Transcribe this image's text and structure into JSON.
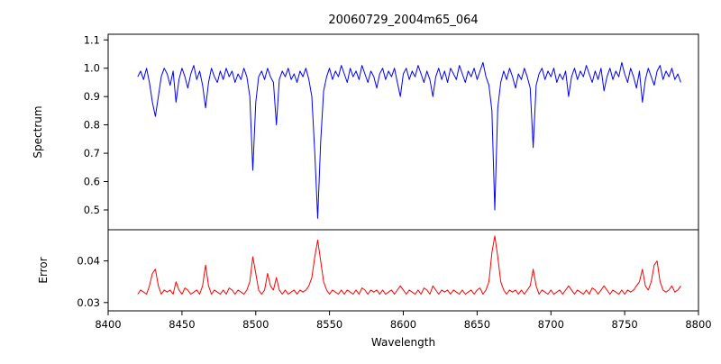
{
  "figure": {
    "background": "#ffffff",
    "axis_color": "#000000"
  },
  "chart_data": [
    {
      "type": "line",
      "name": "spectrum",
      "panel": "top",
      "title": "20060729_2004m65_064",
      "ylabel": "Spectrum",
      "color": "#0000ff",
      "grid": false,
      "legend": "none",
      "xlim": [
        8400,
        8800
      ],
      "ylim": [
        0.43,
        1.12
      ],
      "x_start": 8420,
      "x_step": 2,
      "y_ticks": [
        {
          "value": 0.5,
          "label": "0.5"
        },
        {
          "value": 0.6,
          "label": "0.6"
        },
        {
          "value": 0.7,
          "label": "0.7"
        },
        {
          "value": 0.8,
          "label": "0.8"
        },
        {
          "value": 0.9,
          "label": "0.9"
        },
        {
          "value": 1.0,
          "label": "1.0"
        },
        {
          "value": 1.1,
          "label": "1.1"
        }
      ],
      "y": [
        0.97,
        0.99,
        0.96,
        1.0,
        0.95,
        0.88,
        0.83,
        0.9,
        0.97,
        1.0,
        0.98,
        0.94,
        0.99,
        0.88,
        0.96,
        1.0,
        0.97,
        0.93,
        0.98,
        1.01,
        0.96,
        0.99,
        0.94,
        0.86,
        0.95,
        1.0,
        0.97,
        0.95,
        0.99,
        0.96,
        1.0,
        0.97,
        0.99,
        0.95,
        0.98,
        0.96,
        1.0,
        0.97,
        0.9,
        0.64,
        0.88,
        0.97,
        0.99,
        0.96,
        1.0,
        0.97,
        0.95,
        0.8,
        0.96,
        0.99,
        0.97,
        1.0,
        0.96,
        0.98,
        0.95,
        0.99,
        0.97,
        1.0,
        0.96,
        0.9,
        0.7,
        0.47,
        0.74,
        0.92,
        0.97,
        1.0,
        0.96,
        0.99,
        0.97,
        1.01,
        0.98,
        0.95,
        1.0,
        0.97,
        0.99,
        0.96,
        1.01,
        0.98,
        0.95,
        0.99,
        0.97,
        0.93,
        0.98,
        1.0,
        0.96,
        0.99,
        0.97,
        1.0,
        0.95,
        0.9,
        0.98,
        1.0,
        0.96,
        0.99,
        0.97,
        1.01,
        0.98,
        0.95,
        0.99,
        0.96,
        0.9,
        0.97,
        1.0,
        0.96,
        0.99,
        0.95,
        1.0,
        0.98,
        0.96,
        1.01,
        0.98,
        0.95,
        0.99,
        0.97,
        1.0,
        0.96,
        0.99,
        1.02,
        0.97,
        0.94,
        0.85,
        0.5,
        0.86,
        0.95,
        0.99,
        0.96,
        1.0,
        0.97,
        0.93,
        0.98,
        0.96,
        1.0,
        0.97,
        0.93,
        0.72,
        0.94,
        0.98,
        1.0,
        0.96,
        0.99,
        0.97,
        1.0,
        0.95,
        0.98,
        0.96,
        0.99,
        0.9,
        0.97,
        1.0,
        0.96,
        0.99,
        0.97,
        1.01,
        0.98,
        0.95,
        0.99,
        0.96,
        1.0,
        0.92,
        0.97,
        1.0,
        0.96,
        0.99,
        0.97,
        1.02,
        0.98,
        0.95,
        1.0,
        0.97,
        0.93,
        0.99,
        0.88,
        0.96,
        1.0,
        0.97,
        0.94,
        0.99,
        1.01,
        0.96,
        0.99,
        0.97,
        1.0,
        0.96,
        0.98,
        0.95
      ]
    },
    {
      "type": "line",
      "name": "error",
      "panel": "bottom",
      "ylabel": "Error",
      "xlabel": "Wavelength",
      "color": "#ff0000",
      "grid": false,
      "legend": "none",
      "xlim": [
        8400,
        8800
      ],
      "ylim": [
        0.028,
        0.0475
      ],
      "x_start": 8420,
      "x_step": 2,
      "y_ticks": [
        {
          "value": 0.03,
          "label": "0.03"
        },
        {
          "value": 0.04,
          "label": "0.04"
        }
      ],
      "x_ticks": [
        {
          "value": 8400,
          "label": "8400"
        },
        {
          "value": 8450,
          "label": "8450"
        },
        {
          "value": 8500,
          "label": "8500"
        },
        {
          "value": 8550,
          "label": "8550"
        },
        {
          "value": 8600,
          "label": "8600"
        },
        {
          "value": 8650,
          "label": "8650"
        },
        {
          "value": 8700,
          "label": "8700"
        },
        {
          "value": 8750,
          "label": "8750"
        },
        {
          "value": 8800,
          "label": "8800"
        }
      ],
      "y": [
        0.032,
        0.033,
        0.0325,
        0.032,
        0.034,
        0.037,
        0.038,
        0.034,
        0.032,
        0.033,
        0.0325,
        0.033,
        0.032,
        0.035,
        0.033,
        0.032,
        0.0335,
        0.033,
        0.032,
        0.0325,
        0.033,
        0.032,
        0.034,
        0.039,
        0.034,
        0.032,
        0.033,
        0.0325,
        0.032,
        0.033,
        0.032,
        0.0335,
        0.033,
        0.032,
        0.033,
        0.0325,
        0.032,
        0.033,
        0.035,
        0.041,
        0.037,
        0.033,
        0.032,
        0.033,
        0.037,
        0.034,
        0.033,
        0.036,
        0.033,
        0.032,
        0.033,
        0.032,
        0.0325,
        0.033,
        0.032,
        0.033,
        0.0325,
        0.033,
        0.034,
        0.036,
        0.041,
        0.045,
        0.04,
        0.035,
        0.033,
        0.032,
        0.033,
        0.0325,
        0.032,
        0.033,
        0.032,
        0.033,
        0.0325,
        0.032,
        0.033,
        0.032,
        0.0335,
        0.033,
        0.032,
        0.033,
        0.0325,
        0.033,
        0.032,
        0.033,
        0.032,
        0.0325,
        0.033,
        0.032,
        0.033,
        0.034,
        0.033,
        0.032,
        0.033,
        0.0325,
        0.032,
        0.033,
        0.032,
        0.0335,
        0.033,
        0.032,
        0.034,
        0.033,
        0.032,
        0.033,
        0.0325,
        0.033,
        0.032,
        0.033,
        0.0325,
        0.032,
        0.033,
        0.032,
        0.0325,
        0.033,
        0.032,
        0.033,
        0.0335,
        0.032,
        0.033,
        0.035,
        0.042,
        0.046,
        0.041,
        0.035,
        0.033,
        0.032,
        0.033,
        0.0325,
        0.033,
        0.032,
        0.033,
        0.032,
        0.033,
        0.034,
        0.038,
        0.034,
        0.032,
        0.033,
        0.0325,
        0.032,
        0.033,
        0.032,
        0.0325,
        0.033,
        0.032,
        0.033,
        0.034,
        0.033,
        0.032,
        0.033,
        0.0325,
        0.032,
        0.033,
        0.032,
        0.0335,
        0.033,
        0.032,
        0.033,
        0.034,
        0.033,
        0.032,
        0.033,
        0.0325,
        0.032,
        0.033,
        0.032,
        0.033,
        0.0325,
        0.033,
        0.034,
        0.035,
        0.038,
        0.034,
        0.033,
        0.035,
        0.039,
        0.04,
        0.035,
        0.033,
        0.0325,
        0.033,
        0.034,
        0.0325,
        0.033,
        0.034
      ]
    }
  ]
}
